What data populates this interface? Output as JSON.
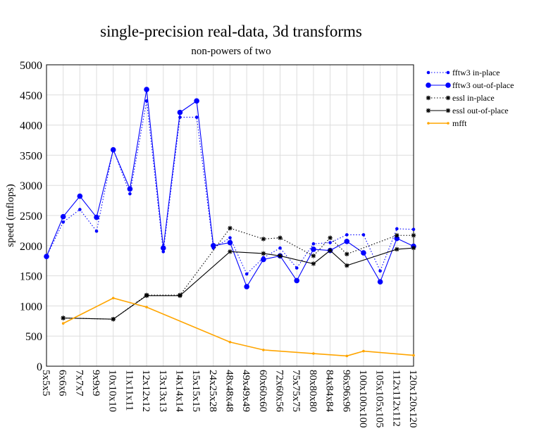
{
  "chart_data": {
    "type": "line",
    "title": "single-precision real-data, 3d transforms",
    "subtitle": "non-powers of two",
    "xlabel": "",
    "ylabel": "speed (mflops)",
    "ylim": [
      0,
      5000
    ],
    "yticks": [
      0,
      500,
      1000,
      1500,
      2000,
      2500,
      3000,
      3500,
      4000,
      4500,
      5000
    ],
    "grid": true,
    "legend_position": "top-right",
    "categories": [
      "5x5x5",
      "6x6x6",
      "7x7x7",
      "9x9x9",
      "10x10x10",
      "11x11x11",
      "12x12x12",
      "13x13x13",
      "14x14x14",
      "15x15x15",
      "24x25x28",
      "48x48x48",
      "49x49x49",
      "60x60x60",
      "72x60x56",
      "75x75x75",
      "80x80x80",
      "84x84x84",
      "96x96x96",
      "100x100x100",
      "105x105x105",
      "112x112x112",
      "120x120x120"
    ],
    "series": [
      {
        "name": "fftw3 in-place",
        "color": "#0000ff",
        "line": "dotted",
        "marker": "small-dot",
        "values": [
          1820,
          2390,
          2600,
          2240,
          3600,
          2860,
          4400,
          1900,
          4130,
          4130,
          1960,
          2130,
          1530,
          1800,
          1960,
          1630,
          2030,
          2050,
          2180,
          2180,
          1580,
          2280,
          2270
        ]
      },
      {
        "name": "fftw3 out-of-place",
        "color": "#0000ff",
        "line": "solid",
        "marker": "big-dot",
        "values": [
          1820,
          2480,
          2820,
          2470,
          3590,
          2940,
          4590,
          1960,
          4210,
          4400,
          2000,
          2050,
          1320,
          1770,
          1830,
          1420,
          1940,
          1920,
          2070,
          1880,
          1400,
          2120,
          1990
        ]
      },
      {
        "name": "essl in-place",
        "color": "#000000",
        "line": "dotted",
        "marker": "star",
        "values": [
          null,
          800,
          null,
          null,
          780,
          null,
          1180,
          null,
          1180,
          null,
          null,
          2290,
          null,
          2110,
          2130,
          null,
          1830,
          2130,
          1860,
          null,
          null,
          2170,
          2170
        ]
      },
      {
        "name": "essl out-of-place",
        "color": "#000000",
        "line": "solid",
        "marker": "star",
        "values": [
          null,
          800,
          null,
          null,
          780,
          null,
          1170,
          null,
          1170,
          null,
          null,
          1900,
          null,
          1870,
          1830,
          null,
          1700,
          1920,
          1670,
          null,
          null,
          1940,
          1960
        ]
      },
      {
        "name": "mfft",
        "color": "#ffa500",
        "line": "solid",
        "marker": "tiny-dot",
        "values": [
          null,
          710,
          null,
          null,
          1130,
          null,
          980,
          null,
          null,
          null,
          null,
          400,
          null,
          270,
          null,
          null,
          210,
          null,
          170,
          250,
          null,
          null,
          180
        ]
      }
    ]
  }
}
